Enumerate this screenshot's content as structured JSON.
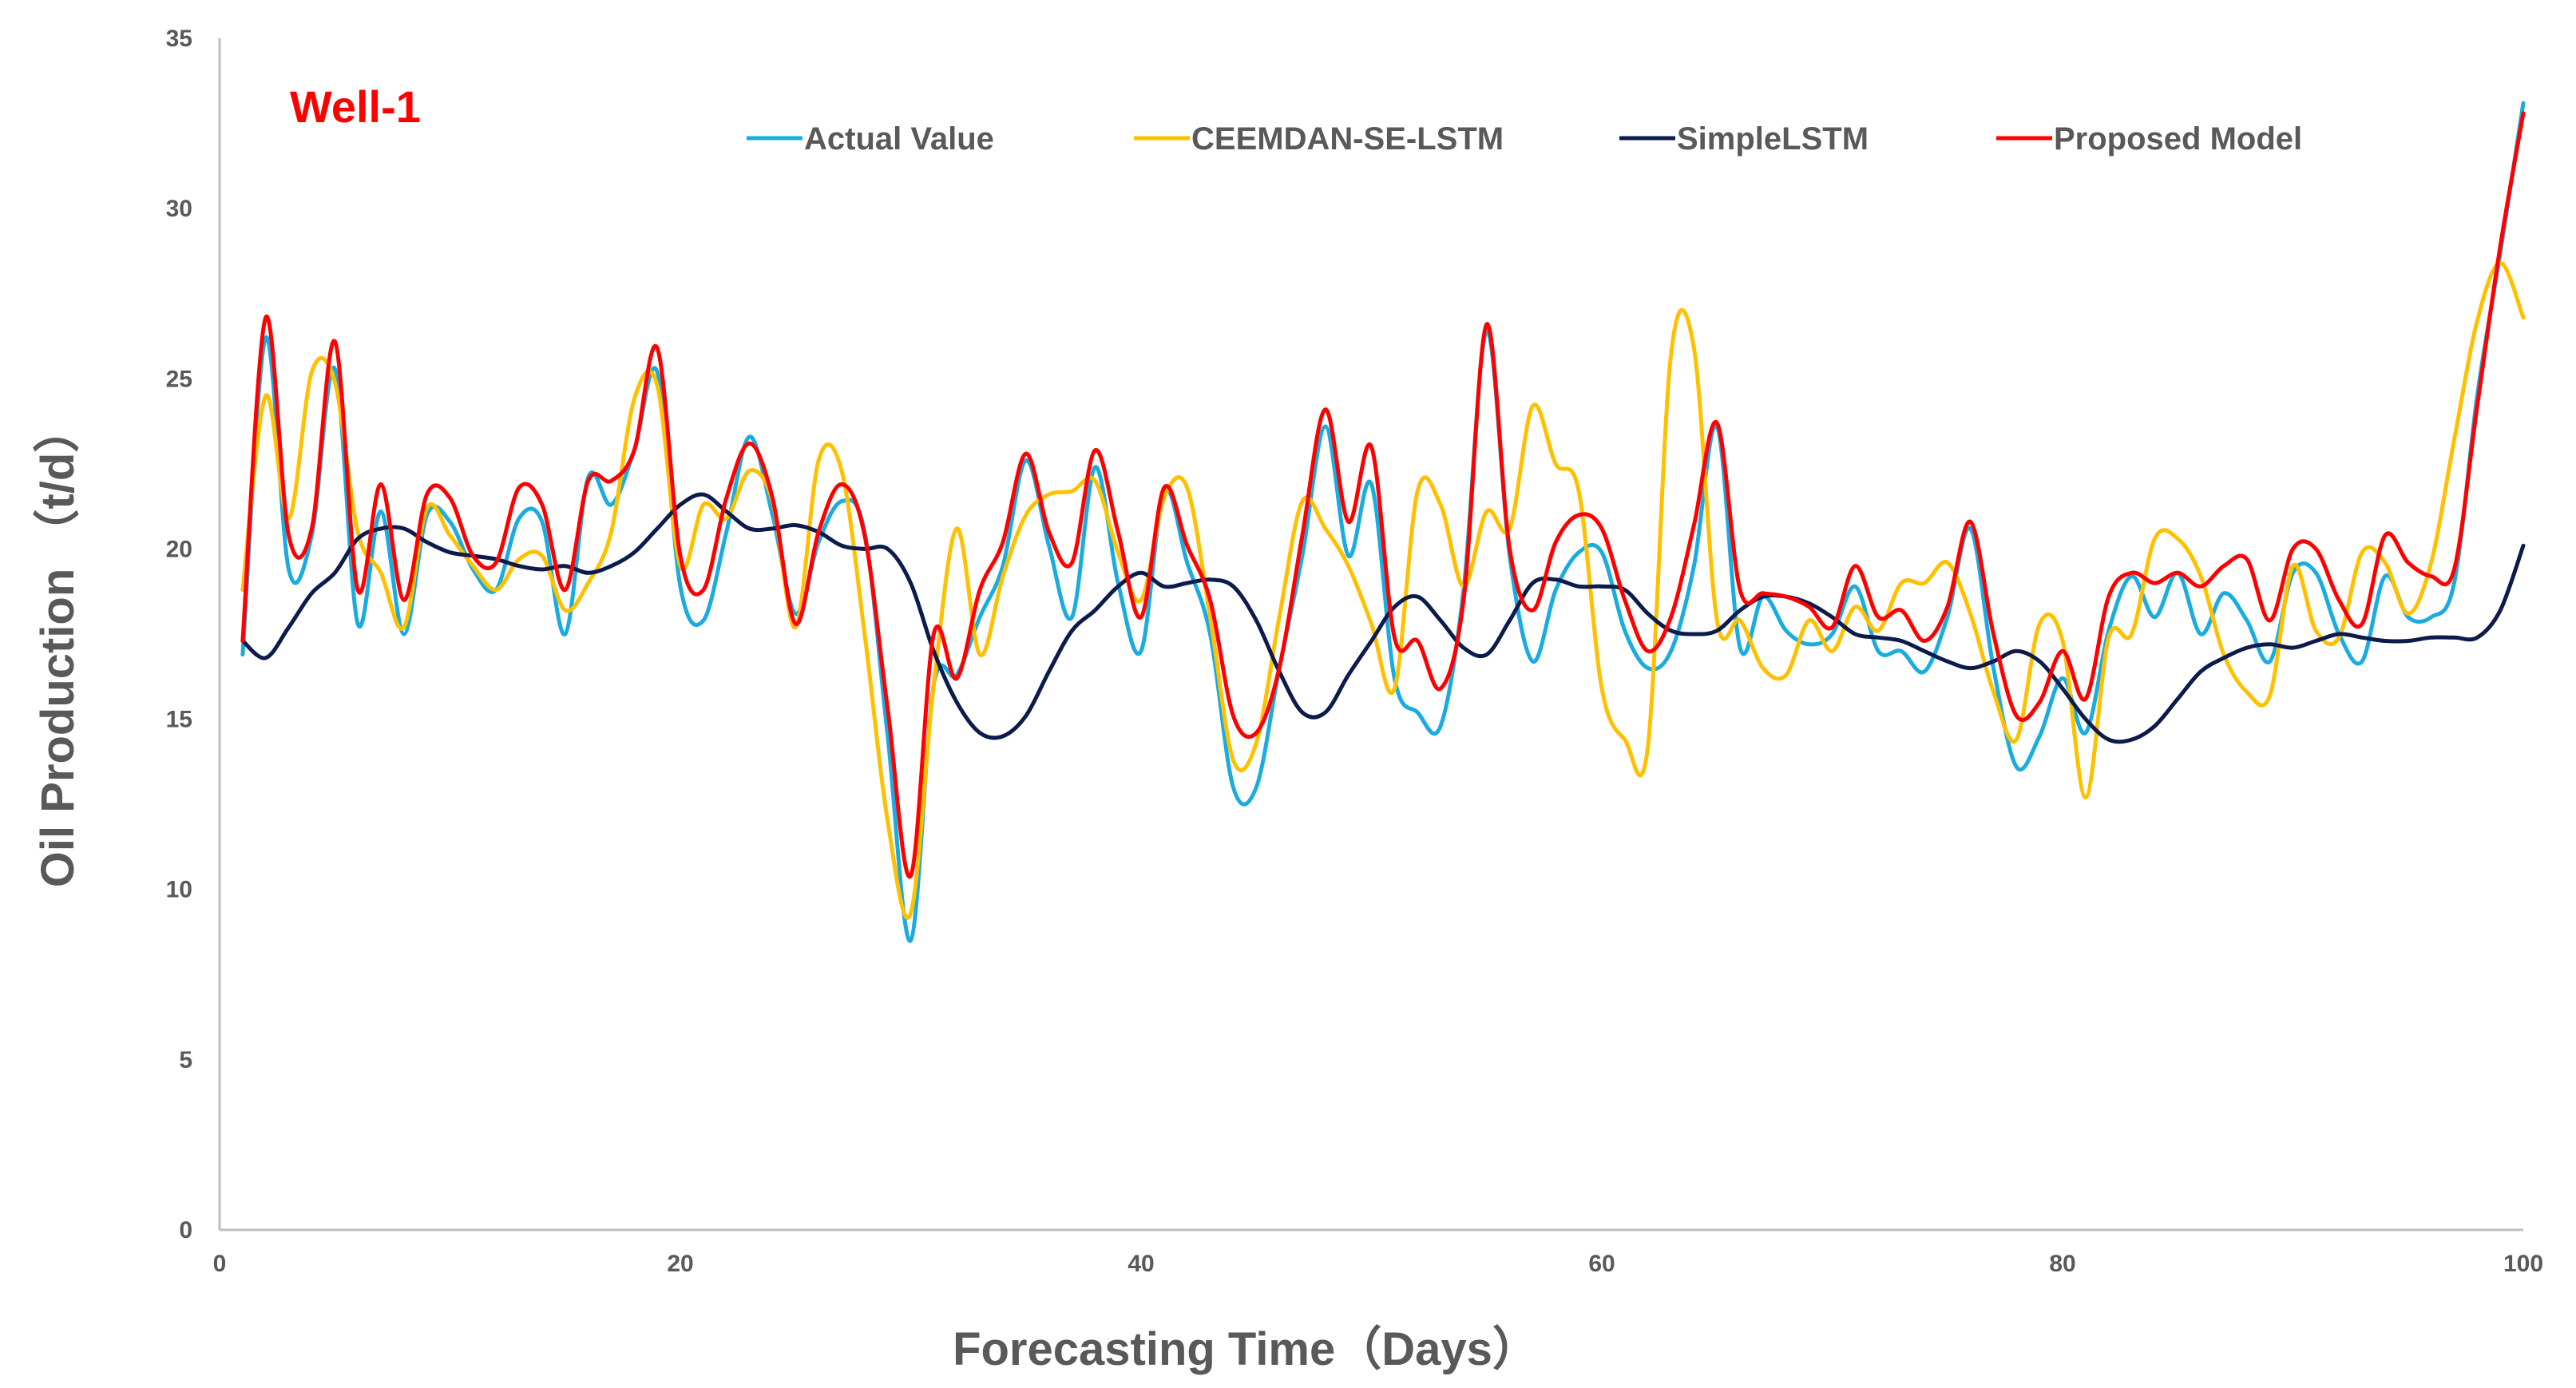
{
  "chart_data": {
    "type": "line",
    "title": "",
    "annotation": {
      "text": "Well-1",
      "color": "#FF0000"
    },
    "xlabel": "Forecasting Time（Days）",
    "ylabel": "Oil Production （t/d）",
    "xlim": [
      0,
      100
    ],
    "ylim": [
      0,
      35
    ],
    "xticks": [
      "0",
      "20",
      "40",
      "60",
      "80",
      "100"
    ],
    "yticks": [
      "0",
      "5",
      "10",
      "15",
      "20",
      "25",
      "30",
      "35"
    ],
    "grid": false,
    "legend_position": "top",
    "x": [
      1,
      2,
      3,
      4,
      5,
      6,
      7,
      8,
      9,
      10,
      11,
      12,
      13,
      14,
      15,
      16,
      17,
      18,
      19,
      20,
      21,
      22,
      23,
      24,
      25,
      26,
      27,
      28,
      29,
      30,
      31,
      32,
      33,
      34,
      35,
      36,
      37,
      38,
      39,
      40,
      41,
      42,
      43,
      44,
      45,
      46,
      47,
      48,
      49,
      50,
      51,
      52,
      53,
      54,
      55,
      56,
      57,
      58,
      59,
      60,
      61,
      62,
      63,
      64,
      65,
      66,
      67,
      68,
      69,
      70,
      71,
      72,
      73,
      74,
      75,
      76,
      77,
      78,
      79,
      80,
      81,
      82,
      83,
      84,
      85,
      86,
      87,
      88,
      89,
      90,
      91,
      92,
      93,
      94,
      95,
      96,
      97,
      98,
      99,
      100
    ],
    "series": [
      {
        "name": "Actual Value",
        "color": "#1AACE0",
        "values": [
          16.9,
          26.2,
          19.4,
          20.4,
          25.3,
          17.8,
          21.1,
          17.5,
          21.0,
          20.8,
          19.4,
          18.8,
          20.9,
          20.8,
          17.5,
          22.1,
          21.3,
          22.9,
          25.2,
          18.9,
          17.9,
          20.5,
          23.3,
          21.0,
          18.1,
          20.2,
          21.4,
          20.5,
          14.5,
          8.5,
          16.0,
          16.3,
          18.0,
          19.5,
          22.6,
          20.1,
          18.0,
          22.4,
          19.0,
          17.0,
          21.7,
          19.6,
          17.5,
          13.0,
          13.0,
          16.5,
          19.8,
          23.6,
          19.8,
          21.9,
          16.2,
          15.2,
          14.8,
          18.8,
          26.4,
          19.8,
          16.7,
          18.8,
          19.9,
          19.9,
          17.6,
          16.5,
          17.0,
          19.5,
          23.6,
          17.1,
          18.6,
          17.6,
          17.2,
          17.5,
          18.9,
          17.0,
          17.0,
          16.4,
          18.0,
          20.6,
          16.5,
          13.6,
          14.5,
          16.2,
          14.6,
          17.6,
          19.2,
          18.0,
          19.3,
          17.5,
          18.7,
          17.9,
          16.7,
          19.3,
          19.3,
          17.5,
          16.7,
          19.2,
          18.0,
          18.0,
          19.0,
          24.5,
          28.7,
          33.1
        ]
      },
      {
        "name": "CEEMDAN-SE-LSTM",
        "color": "#FFC000",
        "values": [
          18.8,
          24.5,
          20.9,
          25.2,
          24.9,
          20.5,
          19.3,
          17.7,
          21.2,
          20.4,
          19.5,
          18.8,
          19.7,
          19.8,
          18.2,
          19.0,
          20.5,
          24.4,
          24.8,
          19.5,
          21.3,
          20.9,
          22.3,
          21.4,
          17.7,
          22.6,
          22.3,
          17.5,
          12.0,
          9.3,
          16.0,
          20.6,
          16.9,
          19.2,
          21.0,
          21.6,
          21.7,
          22.0,
          19.9,
          18.5,
          21.5,
          21.8,
          18.0,
          13.8,
          14.3,
          18.0,
          21.4,
          20.6,
          19.5,
          17.8,
          15.9,
          21.7,
          21.3,
          18.9,
          21.1,
          20.6,
          24.2,
          22.5,
          21.7,
          15.9,
          14.4,
          14.2,
          25.7,
          25.9,
          17.9,
          17.9,
          16.5,
          16.3,
          17.9,
          17.0,
          18.3,
          17.6,
          19.0,
          19.0,
          19.6,
          18.1,
          15.8,
          14.4,
          17.8,
          17.3,
          12.7,
          17.4,
          17.5,
          20.3,
          20.3,
          19.2,
          16.9,
          15.8,
          15.7,
          19.5,
          17.6,
          17.4,
          19.9,
          19.6,
          18.1,
          19.6,
          23.2,
          26.7,
          28.4,
          26.8
        ]
      },
      {
        "name": "SimpleLSTM",
        "color": "#0D1B4C",
        "values": [
          17.3,
          16.8,
          17.7,
          18.7,
          19.3,
          20.3,
          20.6,
          20.6,
          20.2,
          19.9,
          19.8,
          19.7,
          19.5,
          19.4,
          19.5,
          19.3,
          19.5,
          19.9,
          20.6,
          21.3,
          21.6,
          21.1,
          20.6,
          20.6,
          20.7,
          20.5,
          20.1,
          20.0,
          20.0,
          19.0,
          17.0,
          15.5,
          14.6,
          14.5,
          15.1,
          16.4,
          17.6,
          18.2,
          18.9,
          19.3,
          18.9,
          19.0,
          19.1,
          18.9,
          17.9,
          16.4,
          15.2,
          15.2,
          16.3,
          17.3,
          18.3,
          18.6,
          17.9,
          17.1,
          16.9,
          17.9,
          19.0,
          19.1,
          18.9,
          18.9,
          18.8,
          18.1,
          17.6,
          17.5,
          17.6,
          18.2,
          18.6,
          18.6,
          18.4,
          18.0,
          17.5,
          17.4,
          17.3,
          17.0,
          16.7,
          16.5,
          16.7,
          17.0,
          16.7,
          15.9,
          15.0,
          14.4,
          14.4,
          14.8,
          15.6,
          16.4,
          16.8,
          17.1,
          17.2,
          17.1,
          17.3,
          17.5,
          17.4,
          17.3,
          17.3,
          17.4,
          17.4,
          17.4,
          18.2,
          20.1
        ]
      },
      {
        "name": "Proposed Model",
        "color": "#FF0000",
        "values": [
          17.3,
          26.8,
          20.4,
          20.6,
          26.1,
          18.8,
          21.9,
          18.5,
          21.6,
          21.5,
          19.8,
          19.6,
          21.8,
          21.3,
          18.8,
          22.0,
          22.0,
          22.9,
          25.9,
          19.8,
          18.8,
          21.5,
          23.1,
          21.5,
          17.8,
          20.5,
          21.9,
          20.4,
          15.3,
          10.4,
          17.5,
          16.2,
          18.8,
          20.2,
          22.8,
          20.5,
          19.6,
          22.9,
          20.5,
          18.0,
          21.8,
          20.1,
          18.5,
          15.1,
          14.6,
          16.5,
          20.4,
          24.1,
          20.8,
          23.0,
          17.4,
          17.3,
          15.9,
          18.5,
          26.6,
          20.0,
          18.2,
          20.2,
          21.0,
          20.6,
          18.5,
          17.0,
          18.0,
          20.7,
          23.7,
          18.8,
          18.7,
          18.6,
          18.3,
          17.7,
          19.5,
          18.0,
          18.2,
          17.3,
          18.3,
          20.8,
          17.5,
          15.1,
          15.5,
          17.0,
          15.6,
          18.6,
          19.3,
          19.0,
          19.3,
          18.9,
          19.5,
          19.7,
          17.9,
          20.0,
          20.0,
          18.5,
          17.8,
          20.4,
          19.6,
          19.2,
          19.4,
          24.2,
          28.9,
          32.8
        ]
      }
    ]
  }
}
